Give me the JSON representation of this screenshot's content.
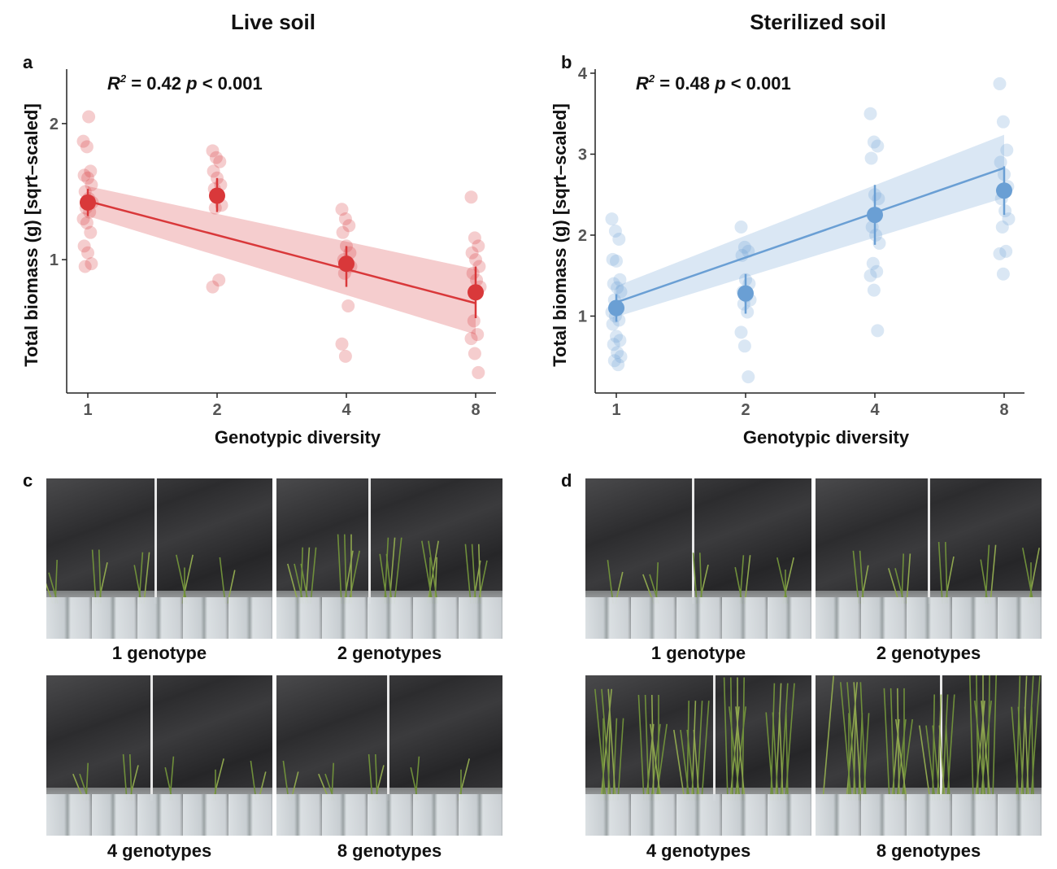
{
  "titles": {
    "live": "Live soil",
    "sterilized": "Sterilized soil"
  },
  "panel_labels": {
    "a": "a",
    "b": "b",
    "c": "c",
    "d": "d"
  },
  "captions": {
    "c": [
      "1 genotype",
      "2 genotypes",
      "4 genotypes",
      "8 genotypes"
    ],
    "d": [
      "1 genotype",
      "2 genotypes",
      "4 genotypes",
      "8 genotypes"
    ]
  },
  "chart_data": [
    {
      "type": "scatter",
      "panel": "a",
      "title": "Live soil",
      "xlabel": "Genotypic diversity",
      "ylabel": "Total biomass (g) [sqrt–scaled]",
      "xticks": [
        1,
        2,
        4,
        8
      ],
      "yticks": [
        1,
        2
      ],
      "ylim": [
        0.02,
        2.4
      ],
      "stats": {
        "r2": "R² = 0.42",
        "p": "p < 0.001"
      },
      "color": "#d9383a",
      "points": {
        "1": [
          1.87,
          1.83,
          1.65,
          1.62,
          1.6,
          1.55,
          1.5,
          1.45,
          1.42,
          1.38,
          1.35,
          1.3,
          1.27,
          1.2,
          1.1,
          1.05,
          0.97,
          0.95,
          2.05
        ],
        "2": [
          1.8,
          1.75,
          1.72,
          1.65,
          1.6,
          1.55,
          1.52,
          1.48,
          1.4,
          1.38,
          0.85,
          0.8
        ],
        "4": [
          1.37,
          1.3,
          1.25,
          1.2,
          1.1,
          1.05,
          1.0,
          0.98,
          0.95,
          0.9,
          0.66,
          0.38,
          0.29
        ],
        "8": [
          1.46,
          1.16,
          1.1,
          1.05,
          1.0,
          0.95,
          0.9,
          0.85,
          0.8,
          0.55,
          0.45,
          0.42,
          0.31,
          0.17
        ]
      },
      "means": [
        {
          "x": 1,
          "y": 1.42,
          "lo": 1.32,
          "hi": 1.52
        },
        {
          "x": 2,
          "y": 1.47,
          "lo": 1.35,
          "hi": 1.6
        },
        {
          "x": 4,
          "y": 0.97,
          "lo": 0.8,
          "hi": 1.1
        },
        {
          "x": 8,
          "y": 0.76,
          "lo": 0.57,
          "hi": 0.95
        }
      ],
      "fit": {
        "x0": 1,
        "y0": 1.43,
        "x1": 8,
        "y1": 0.68
      },
      "band": {
        "lower0": 1.32,
        "upper0": 1.54,
        "lower1": 0.45,
        "upper1": 0.93
      }
    },
    {
      "type": "scatter",
      "panel": "b",
      "title": "Sterilized soil",
      "xlabel": "Genotypic diversity",
      "ylabel": "Total biomass (g) [sqrt–scaled]",
      "xticks": [
        1,
        2,
        4,
        8
      ],
      "yticks": [
        1,
        2,
        3,
        4
      ],
      "ylim": [
        0.05,
        4.05
      ],
      "stats": {
        "r2": "R² = 0.48",
        "p": "p < 0.001"
      },
      "color": "#6a9fd4",
      "points": {
        "1": [
          2.2,
          2.05,
          1.95,
          1.7,
          1.68,
          1.45,
          1.4,
          1.35,
          1.3,
          1.2,
          1.1,
          1.05,
          1.0,
          0.95,
          0.9,
          0.75,
          0.7,
          0.65,
          0.55,
          0.5,
          0.45,
          0.4
        ],
        "2": [
          2.1,
          1.85,
          1.8,
          1.75,
          1.45,
          1.4,
          1.3,
          1.25,
          1.2,
          1.15,
          1.05,
          0.8,
          0.63,
          0.25
        ],
        "4": [
          3.5,
          3.15,
          3.1,
          2.95,
          2.5,
          2.45,
          2.1,
          2.0,
          1.9,
          1.65,
          1.55,
          1.5,
          1.32,
          0.82
        ],
        "8": [
          3.87,
          3.4,
          3.05,
          2.9,
          2.75,
          2.6,
          2.45,
          2.3,
          2.2,
          2.1,
          1.8,
          1.77,
          1.52
        ]
      },
      "means": [
        {
          "x": 1,
          "y": 1.1,
          "lo": 0.93,
          "hi": 1.27
        },
        {
          "x": 2,
          "y": 1.28,
          "lo": 1.03,
          "hi": 1.52
        },
        {
          "x": 4,
          "y": 2.25,
          "lo": 1.88,
          "hi": 2.62
        },
        {
          "x": 8,
          "y": 2.55,
          "lo": 2.25,
          "hi": 2.85
        }
      ],
      "fit": {
        "x0": 1,
        "y0": 1.17,
        "x1": 8,
        "y1": 2.83
      },
      "band": {
        "lower0": 0.99,
        "upper0": 1.37,
        "lower1": 2.46,
        "upper1": 3.24
      }
    }
  ]
}
